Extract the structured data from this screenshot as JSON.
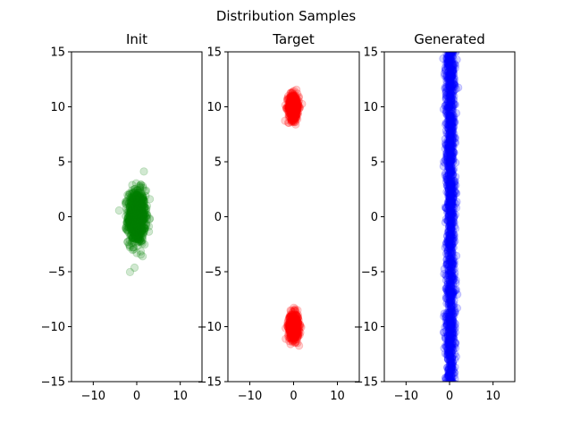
{
  "figure": {
    "suptitle": "Distribution Samples"
  },
  "chart_data": [
    {
      "type": "scatter",
      "title": "Init",
      "xlabel": "",
      "ylabel": "",
      "xlim": [
        -15,
        15
      ],
      "ylim": [
        -15,
        15
      ],
      "xticks": [
        -10,
        0,
        10
      ],
      "yticks": [
        -15,
        -10,
        -5,
        0,
        5,
        10,
        15
      ],
      "grid": false,
      "series": [
        {
          "color": "#008000",
          "alpha": 0.18,
          "clusters": [
            {
              "cx": 0,
              "cy": 0,
              "sx": 1.0,
              "sy": 1.2,
              "n": 900
            }
          ]
        }
      ]
    },
    {
      "type": "scatter",
      "title": "Target",
      "xlabel": "",
      "ylabel": "",
      "xlim": [
        -15,
        15
      ],
      "ylim": [
        -15,
        15
      ],
      "xticks": [
        -10,
        0,
        10
      ],
      "yticks": [
        -15,
        -10,
        -5,
        0,
        5,
        10,
        15
      ],
      "grid": false,
      "series": [
        {
          "color": "#ff0000",
          "alpha": 0.18,
          "clusters": [
            {
              "cx": 0,
              "cy": 10,
              "sx": 0.6,
              "sy": 0.6,
              "n": 450
            },
            {
              "cx": 0,
              "cy": -10,
              "sx": 0.6,
              "sy": 0.6,
              "n": 450
            }
          ]
        }
      ]
    },
    {
      "type": "scatter",
      "title": "Generated",
      "xlabel": "",
      "ylabel": "",
      "xlim": [
        -15,
        15
      ],
      "ylim": [
        -15,
        15
      ],
      "xticks": [
        -10,
        0,
        10
      ],
      "yticks": [
        -15,
        -10,
        -5,
        0,
        5,
        10,
        15
      ],
      "grid": false,
      "series": [
        {
          "color": "#0000ff",
          "alpha": 0.18,
          "clusters": [
            {
              "cx": 0.2,
              "cy": 0,
              "sx": 0.55,
              "uniformY": [
                -15.5,
                15.5
              ],
              "n": 1400
            }
          ]
        }
      ]
    }
  ]
}
